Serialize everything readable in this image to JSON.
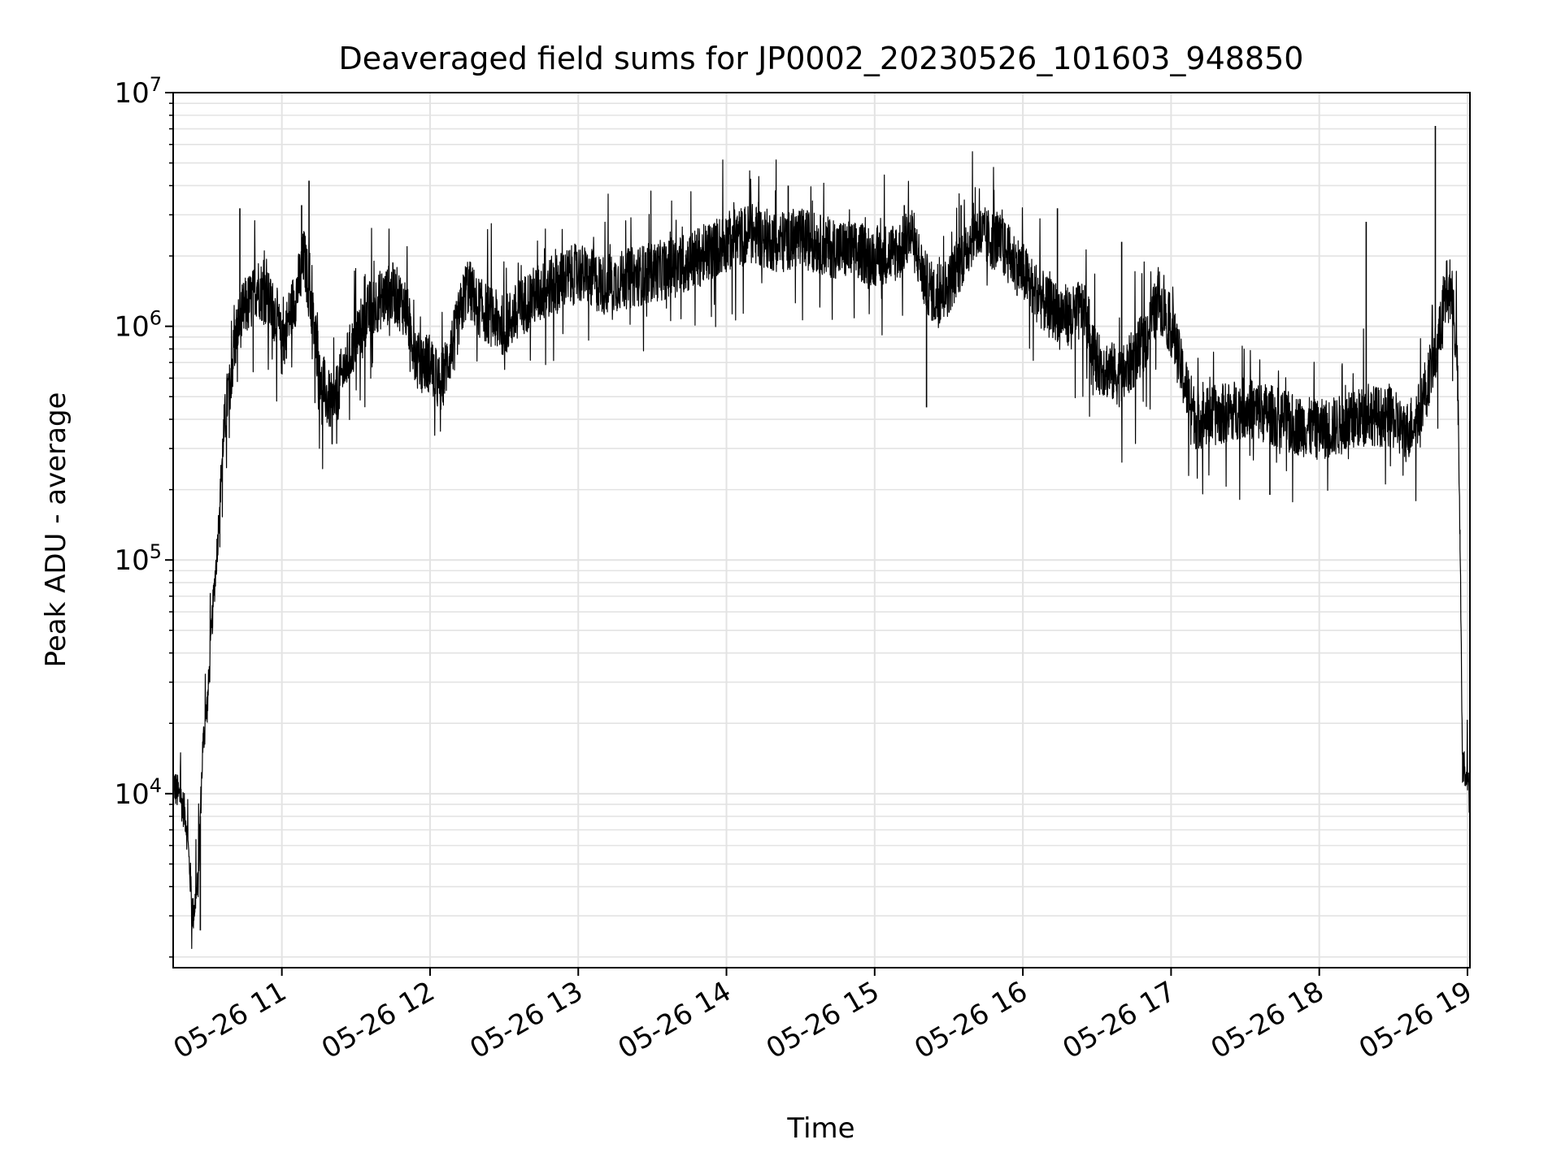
{
  "chart_data": {
    "type": "line",
    "title": "Deaveraged field sums for JP0002_20230526_101603_948850",
    "xlabel": "Time",
    "ylabel": "Peak ADU - average",
    "yscale": "log",
    "xlim": [
      "2023-05-26 10:16",
      "2023-05-26 19:01"
    ],
    "ylim": [
      1800,
      10000000
    ],
    "grid": true,
    "line_color": "#000000",
    "x_ticks": [
      {
        "value": "2023-05-26 11:00",
        "label": "05-26 11"
      },
      {
        "value": "2023-05-26 12:00",
        "label": "05-26 12"
      },
      {
        "value": "2023-05-26 13:00",
        "label": "05-26 13"
      },
      {
        "value": "2023-05-26 14:00",
        "label": "05-26 14"
      },
      {
        "value": "2023-05-26 15:00",
        "label": "05-26 15"
      },
      {
        "value": "2023-05-26 16:00",
        "label": "05-26 16"
      },
      {
        "value": "2023-05-26 17:00",
        "label": "05-26 17"
      },
      {
        "value": "2023-05-26 18:00",
        "label": "05-26 18"
      },
      {
        "value": "2023-05-26 19:00",
        "label": "05-26 19"
      }
    ],
    "y_ticks": [
      {
        "value": 10000,
        "base": "10",
        "exp": "4"
      },
      {
        "value": 100000,
        "base": "10",
        "exp": "5"
      },
      {
        "value": 1000000,
        "base": "10",
        "exp": "6"
      },
      {
        "value": 10000000,
        "base": "10",
        "exp": "7"
      }
    ],
    "series": [
      {
        "x": [
          "2023-05-26 10:16",
          "2023-05-26 10:19",
          "2023-05-26 10:21",
          "2023-05-26 10:22",
          "2023-05-26 10:24",
          "2023-05-26 10:26",
          "2023-05-26 10:28",
          "2023-05-26 10:30",
          "2023-05-26 10:32",
          "2023-05-26 10:34",
          "2023-05-26 10:36",
          "2023-05-26 10:38",
          "2023-05-26 10:40",
          "2023-05-26 10:42",
          "2023-05-26 10:45",
          "2023-05-26 10:48",
          "2023-05-26 10:50",
          "2023-05-26 10:54",
          "2023-05-26 10:58",
          "2023-05-26 11:00",
          "2023-05-26 11:03",
          "2023-05-26 11:06",
          "2023-05-26 11:09",
          "2023-05-26 11:12",
          "2023-05-26 11:15",
          "2023-05-26 11:18",
          "2023-05-26 11:21",
          "2023-05-26 11:24",
          "2023-05-26 11:30",
          "2023-05-26 11:36",
          "2023-05-26 11:40",
          "2023-05-26 11:45",
          "2023-05-26 11:50",
          "2023-05-26 11:55",
          "2023-05-26 12:00",
          "2023-05-26 12:04",
          "2023-05-26 12:10",
          "2023-05-26 12:15",
          "2023-05-26 12:20",
          "2023-05-26 12:30",
          "2023-05-26 12:40",
          "2023-05-26 12:50",
          "2023-05-26 13:00",
          "2023-05-26 13:10",
          "2023-05-26 13:20",
          "2023-05-26 13:30",
          "2023-05-26 13:40",
          "2023-05-26 13:50",
          "2023-05-26 14:00",
          "2023-05-26 14:10",
          "2023-05-26 14:20",
          "2023-05-26 14:30",
          "2023-05-26 14:40",
          "2023-05-26 14:50",
          "2023-05-26 15:00",
          "2023-05-26 15:10",
          "2023-05-26 15:15",
          "2023-05-26 15:20",
          "2023-05-26 15:25",
          "2023-05-26 15:30",
          "2023-05-26 15:40",
          "2023-05-26 15:50",
          "2023-05-26 16:00",
          "2023-05-26 16:10",
          "2023-05-26 16:20",
          "2023-05-26 16:25",
          "2023-05-26 16:30",
          "2023-05-26 16:40",
          "2023-05-26 16:50",
          "2023-05-26 16:55",
          "2023-05-26 17:00",
          "2023-05-26 17:05",
          "2023-05-26 17:10",
          "2023-05-26 17:20",
          "2023-05-26 17:30",
          "2023-05-26 17:40",
          "2023-05-26 17:50",
          "2023-05-26 18:00",
          "2023-05-26 18:10",
          "2023-05-26 18:20",
          "2023-05-26 18:30",
          "2023-05-26 18:35",
          "2023-05-26 18:40",
          "2023-05-26 18:44",
          "2023-05-26 18:48",
          "2023-05-26 18:50",
          "2023-05-26 18:52",
          "2023-05-26 18:54",
          "2023-05-26 18:56",
          "2023-05-26 18:57",
          "2023-05-26 18:58",
          "2023-05-26 19:00",
          "2023-05-26 19:01"
        ],
        "y": [
          11000,
          9500,
          8000,
          6000,
          3000,
          4000,
          16000,
          25000,
          60000,
          120000,
          300000,
          500000,
          700000,
          1000000,
          1200000,
          1300000,
          1500000,
          1300000,
          1100000,
          800000,
          1100000,
          1400000,
          2000000,
          1200000,
          700000,
          500000,
          450000,
          600000,
          900000,
          1200000,
          1300000,
          1400000,
          1200000,
          700000,
          700000,
          550000,
          900000,
          1500000,
          1200000,
          1000000,
          1300000,
          1500000,
          1700000,
          1500000,
          1600000,
          1700000,
          1800000,
          2000000,
          2300000,
          2500000,
          2300000,
          2400000,
          2200000,
          2100000,
          2000000,
          2100000,
          2500000,
          1600000,
          1300000,
          1500000,
          2500000,
          2300000,
          1700000,
          1200000,
          1100000,
          1200000,
          700000,
          600000,
          900000,
          1300000,
          1000000,
          600000,
          400000,
          420000,
          450000,
          420000,
          380000,
          360000,
          380000,
          420000,
          400000,
          350000,
          420000,
          600000,
          800000,
          1200000,
          1500000,
          1400000,
          600000,
          120000,
          13000,
          12000,
          9000
        ],
        "spikes": [
          {
            "x": "2023-05-26 11:11",
            "y": 4200000
          },
          {
            "x": "2023-05-26 11:08",
            "y": 3300000
          },
          {
            "x": "2023-05-26 10:43",
            "y": 3200000
          },
          {
            "x": "2023-05-26 14:25",
            "y": 4000000
          },
          {
            "x": "2023-05-26 14:13",
            "y": 3400000
          },
          {
            "x": "2023-05-26 15:12",
            "y": 3300000
          },
          {
            "x": "2023-05-26 15:35",
            "y": 3300000
          },
          {
            "x": "2023-05-26 16:14",
            "y": 3200000
          },
          {
            "x": "2023-05-26 16:40",
            "y": 2300000
          },
          {
            "x": "2023-05-26 18:19",
            "y": 2800000
          },
          {
            "x": "2023-05-26 18:47",
            "y": 7200000
          },
          {
            "x": "2023-05-26 15:21",
            "y": 450000
          },
          {
            "x": "2023-05-26 17:40",
            "y": 190000
          },
          {
            "x": "2023-05-26 10:27",
            "y": 2600
          }
        ]
      }
    ]
  }
}
